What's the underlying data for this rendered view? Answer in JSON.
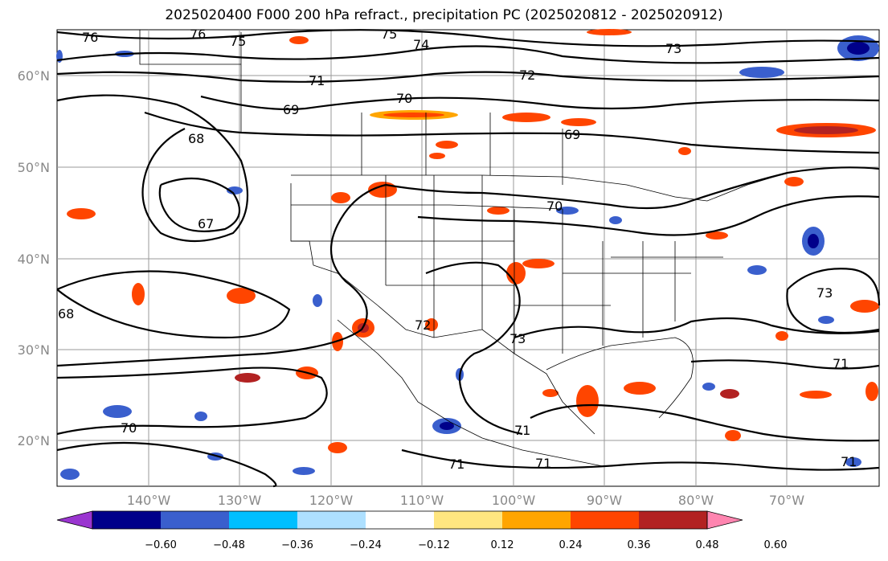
{
  "title": "2025020400 F000 200 hPa refract., precipitation PC (2025020812 - 2025020912)",
  "lat_labels": [
    "60°N",
    "50°N",
    "40°N",
    "30°N",
    "20°N"
  ],
  "lon_labels": [
    "140°W",
    "130°W",
    "120°W",
    "110°W",
    "100°W",
    "90°W",
    "80°W",
    "70°W"
  ],
  "contour_labels": [
    "76",
    "76",
    "75",
    "75",
    "74",
    "73",
    "72",
    "71",
    "70",
    "69",
    "69",
    "68",
    "67",
    "70",
    "72",
    "73",
    "73",
    "71",
    "71",
    "71",
    "71",
    "70",
    "68",
    "71"
  ],
  "colorbar": {
    "ticks": [
      "−0.60",
      "−0.48",
      "−0.36",
      "−0.24",
      "−0.12",
      "0.12",
      "0.24",
      "0.36",
      "0.48",
      "0.60"
    ],
    "colors": [
      "#9a35d0",
      "#00008a",
      "#3a5fcd",
      "#00bfff",
      "#aee0ff",
      "#ffffff",
      "#ffe680",
      "#ffa500",
      "#ff4500",
      "#b22222",
      "#ff85b0"
    ]
  },
  "legend_colors": {
    "positive_1": "#ffe680",
    "positive_2": "#ffa500",
    "positive_3": "#ff4500",
    "positive_4": "#b22222",
    "negative_1": "#aee0ff",
    "negative_2": "#00bfff",
    "negative_3": "#3a5fcd",
    "negative_4": "#00008a"
  }
}
